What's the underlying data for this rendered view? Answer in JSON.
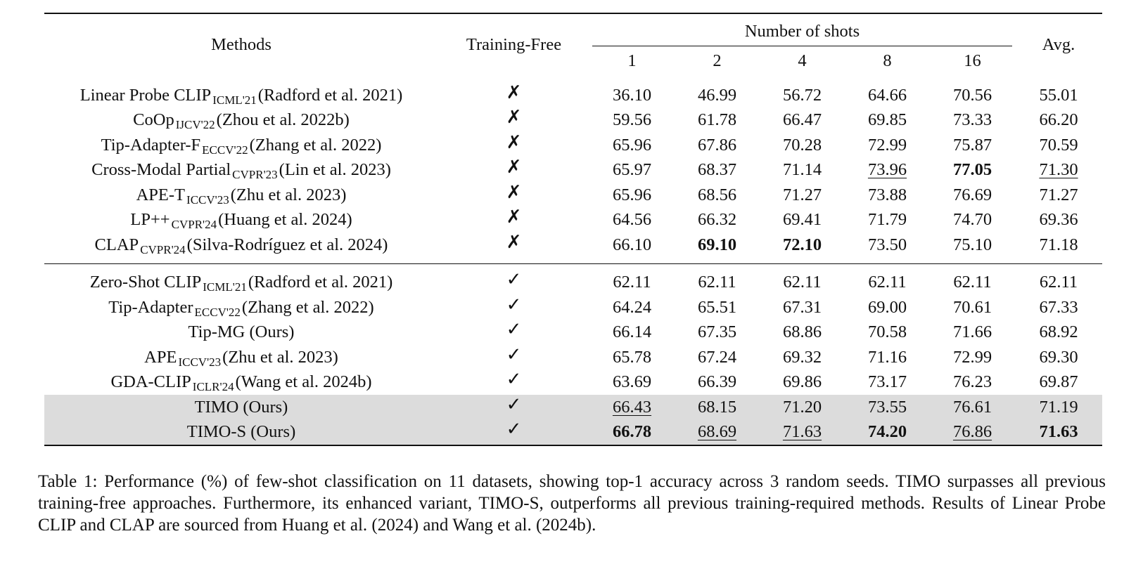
{
  "table": {
    "header": {
      "methods": "Methods",
      "training_free": "Training-Free",
      "number_of_shots": "Number of shots",
      "shots": [
        "1",
        "2",
        "4",
        "8",
        "16"
      ],
      "avg": "Avg."
    },
    "rows": [
      {
        "name": "Linear Probe CLIP",
        "venue": "ICML'21",
        "cite": "(Radford et al. 2021)",
        "training_free": "✗",
        "values": [
          "36.10",
          "46.99",
          "56.72",
          "64.66",
          "70.56",
          "55.01"
        ]
      },
      {
        "name": "CoOp",
        "venue": "IJCV'22",
        "cite": "(Zhou et al. 2022b)",
        "training_free": "✗",
        "values": [
          "59.56",
          "61.78",
          "66.47",
          "69.85",
          "73.33",
          "66.20"
        ]
      },
      {
        "name": "Tip-Adapter-F",
        "venue": "ECCV'22",
        "cite": "(Zhang et al. 2022)",
        "training_free": "✗",
        "values": [
          "65.96",
          "67.86",
          "70.28",
          "72.99",
          "75.87",
          "70.59"
        ]
      },
      {
        "name": "Cross-Modal Partial",
        "venue": "CVPR'23",
        "cite": "(Lin et al. 2023)",
        "training_free": "✗",
        "values": [
          "65.97",
          "68.37",
          "71.14",
          "73.96",
          "77.05",
          "71.30"
        ]
      },
      {
        "name": "APE-T",
        "venue": "ICCV'23",
        "cite": "(Zhu et al. 2023)",
        "training_free": "✗",
        "values": [
          "65.96",
          "68.56",
          "71.27",
          "73.88",
          "76.69",
          "71.27"
        ]
      },
      {
        "name": "LP++",
        "venue": "CVPR'24",
        "cite": "(Huang et al. 2024)",
        "training_free": "✗",
        "values": [
          "64.56",
          "66.32",
          "69.41",
          "71.79",
          "74.70",
          "69.36"
        ]
      },
      {
        "name": "CLAP",
        "venue": "CVPR'24",
        "cite": "(Silva-Rodríguez et al. 2024)",
        "training_free": "✗",
        "values": [
          "66.10",
          "69.10",
          "72.10",
          "73.50",
          "75.10",
          "71.18"
        ]
      },
      {
        "name": "Zero-Shot CLIP",
        "venue": "ICML'21",
        "cite": "(Radford et al. 2021)",
        "training_free": "✓",
        "values": [
          "62.11",
          "62.11",
          "62.11",
          "62.11",
          "62.11",
          "62.11"
        ]
      },
      {
        "name": "Tip-Adapter",
        "venue": "ECCV'22",
        "cite": "(Zhang et al. 2022)",
        "training_free": "✓",
        "values": [
          "64.24",
          "65.51",
          "67.31",
          "69.00",
          "70.61",
          "67.33"
        ]
      },
      {
        "name": "Tip-MG (Ours)",
        "venue": "",
        "cite": "",
        "training_free": "✓",
        "values": [
          "66.14",
          "67.35",
          "68.86",
          "70.58",
          "71.66",
          "68.92"
        ]
      },
      {
        "name": "APE",
        "venue": "ICCV'23",
        "cite": "(Zhu et al. 2023)",
        "training_free": "✓",
        "values": [
          "65.78",
          "67.24",
          "69.32",
          "71.16",
          "72.99",
          "69.30"
        ]
      },
      {
        "name": "GDA-CLIP",
        "venue": "ICLR'24",
        "cite": "(Wang et al. 2024b)",
        "training_free": "✓",
        "values": [
          "63.69",
          "66.39",
          "69.86",
          "73.17",
          "76.23",
          "69.87"
        ]
      },
      {
        "name": "TIMO (Ours)",
        "venue": "",
        "cite": "",
        "training_free": "✓",
        "values": [
          "66.43",
          "68.15",
          "71.20",
          "73.55",
          "76.61",
          "71.19"
        ]
      },
      {
        "name": "TIMO-S (Ours)",
        "venue": "",
        "cite": "",
        "training_free": "✓",
        "values": [
          "66.78",
          "68.69",
          "71.63",
          "74.20",
          "76.86",
          "71.63"
        ]
      }
    ]
  },
  "caption": "Table 1: Performance (%) of few-shot classification on 11 datasets, showing top-1 accuracy across 3 random seeds. TIMO surpasses all previous training-free approaches. Furthermore, its enhanced variant, TIMO-S, outperforms all previous training-required methods. Results of Linear Probe CLIP and CLAP are sourced from Huang et al. (2024) and Wang et al. (2024b)."
}
